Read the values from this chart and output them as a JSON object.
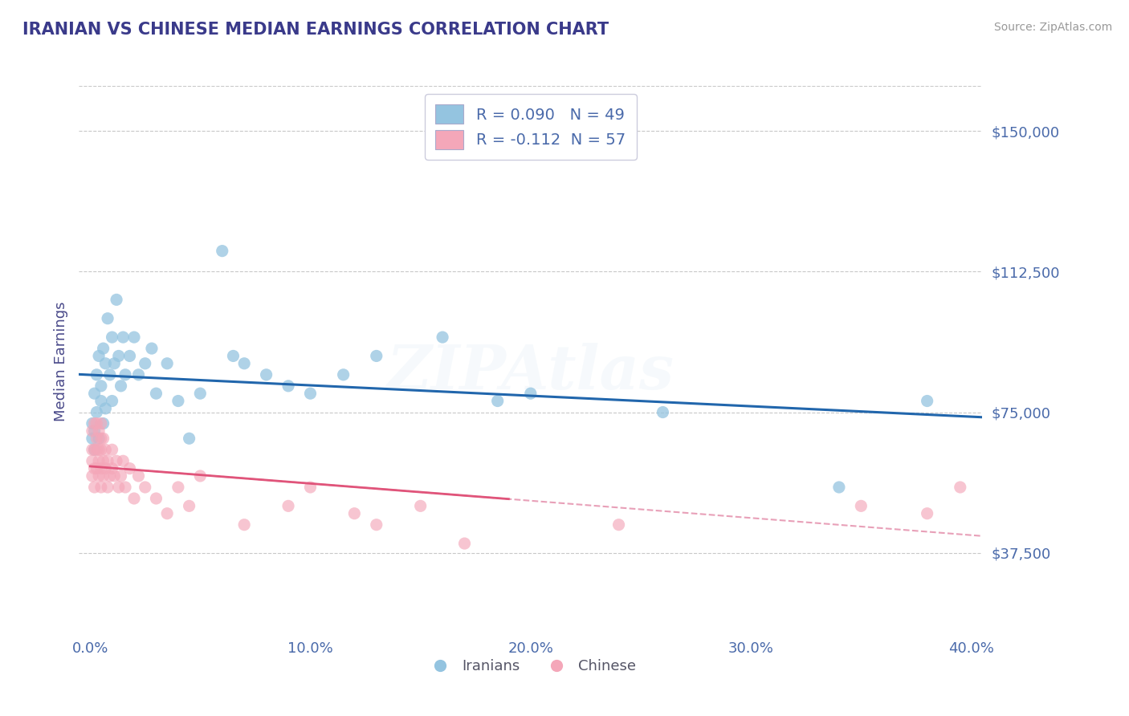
{
  "title": "IRANIAN VS CHINESE MEDIAN EARNINGS CORRELATION CHART",
  "source": "Source: ZipAtlas.com",
  "ylabel": "Median Earnings",
  "xlim": [
    -0.005,
    0.405
  ],
  "ylim": [
    15000,
    162000
  ],
  "yticks": [
    37500,
    75000,
    112500,
    150000
  ],
  "ytick_labels": [
    "$37,500",
    "$75,000",
    "$112,500",
    "$150,000"
  ],
  "xticks": [
    0.0,
    0.1,
    0.2,
    0.3,
    0.4
  ],
  "xtick_labels": [
    "0.0%",
    "10.0%",
    "20.0%",
    "30.0%",
    "40.0%"
  ],
  "legend_label1": "R = 0.090   N = 49",
  "legend_label2": "R = -0.112  N = 57",
  "iranian_color": "#94c4e0",
  "chinese_color": "#f4a7b9",
  "trend_iranian_color": "#2166ac",
  "trend_chinese_solid_color": "#e0547a",
  "trend_chinese_dashed_color": "#e8a0b8",
  "background_color": "#ffffff",
  "grid_color": "#c8c8c8",
  "title_color": "#3a3a8a",
  "axis_label_color": "#4a4a8a",
  "tick_label_color": "#4a6aaa",
  "iranians_x": [
    0.001,
    0.001,
    0.002,
    0.002,
    0.002,
    0.003,
    0.003,
    0.004,
    0.004,
    0.005,
    0.005,
    0.006,
    0.006,
    0.007,
    0.007,
    0.008,
    0.009,
    0.01,
    0.01,
    0.011,
    0.012,
    0.013,
    0.014,
    0.015,
    0.016,
    0.018,
    0.02,
    0.022,
    0.025,
    0.028,
    0.03,
    0.035,
    0.04,
    0.045,
    0.05,
    0.06,
    0.065,
    0.07,
    0.08,
    0.09,
    0.1,
    0.115,
    0.13,
    0.16,
    0.185,
    0.2,
    0.26,
    0.34,
    0.38
  ],
  "iranians_y": [
    72000,
    68000,
    80000,
    70000,
    65000,
    85000,
    75000,
    90000,
    68000,
    82000,
    78000,
    92000,
    72000,
    88000,
    76000,
    100000,
    85000,
    95000,
    78000,
    88000,
    105000,
    90000,
    82000,
    95000,
    85000,
    90000,
    95000,
    85000,
    88000,
    92000,
    80000,
    88000,
    78000,
    68000,
    80000,
    118000,
    90000,
    88000,
    85000,
    82000,
    80000,
    85000,
    90000,
    95000,
    78000,
    80000,
    75000,
    55000,
    78000
  ],
  "chinese_x": [
    0.001,
    0.001,
    0.001,
    0.001,
    0.002,
    0.002,
    0.002,
    0.002,
    0.003,
    0.003,
    0.003,
    0.003,
    0.004,
    0.004,
    0.004,
    0.004,
    0.005,
    0.005,
    0.005,
    0.005,
    0.005,
    0.006,
    0.006,
    0.006,
    0.007,
    0.007,
    0.008,
    0.008,
    0.009,
    0.01,
    0.01,
    0.011,
    0.012,
    0.013,
    0.014,
    0.015,
    0.016,
    0.018,
    0.02,
    0.022,
    0.025,
    0.03,
    0.035,
    0.04,
    0.045,
    0.05,
    0.07,
    0.09,
    0.1,
    0.12,
    0.13,
    0.15,
    0.17,
    0.24,
    0.35,
    0.38,
    0.395
  ],
  "chinese_y": [
    65000,
    62000,
    70000,
    58000,
    72000,
    65000,
    60000,
    55000,
    68000,
    72000,
    60000,
    65000,
    70000,
    62000,
    58000,
    65000,
    68000,
    60000,
    55000,
    72000,
    65000,
    62000,
    58000,
    68000,
    65000,
    60000,
    62000,
    55000,
    58000,
    65000,
    60000,
    58000,
    62000,
    55000,
    58000,
    62000,
    55000,
    60000,
    52000,
    58000,
    55000,
    52000,
    48000,
    55000,
    50000,
    58000,
    45000,
    50000,
    55000,
    48000,
    45000,
    50000,
    40000,
    45000,
    50000,
    48000,
    55000
  ],
  "chinese_solid_xlim": [
    0.0,
    0.19
  ],
  "watermark_text": "ZIPAtlas",
  "watermark_fontsize": 55,
  "watermark_alpha": 0.12
}
